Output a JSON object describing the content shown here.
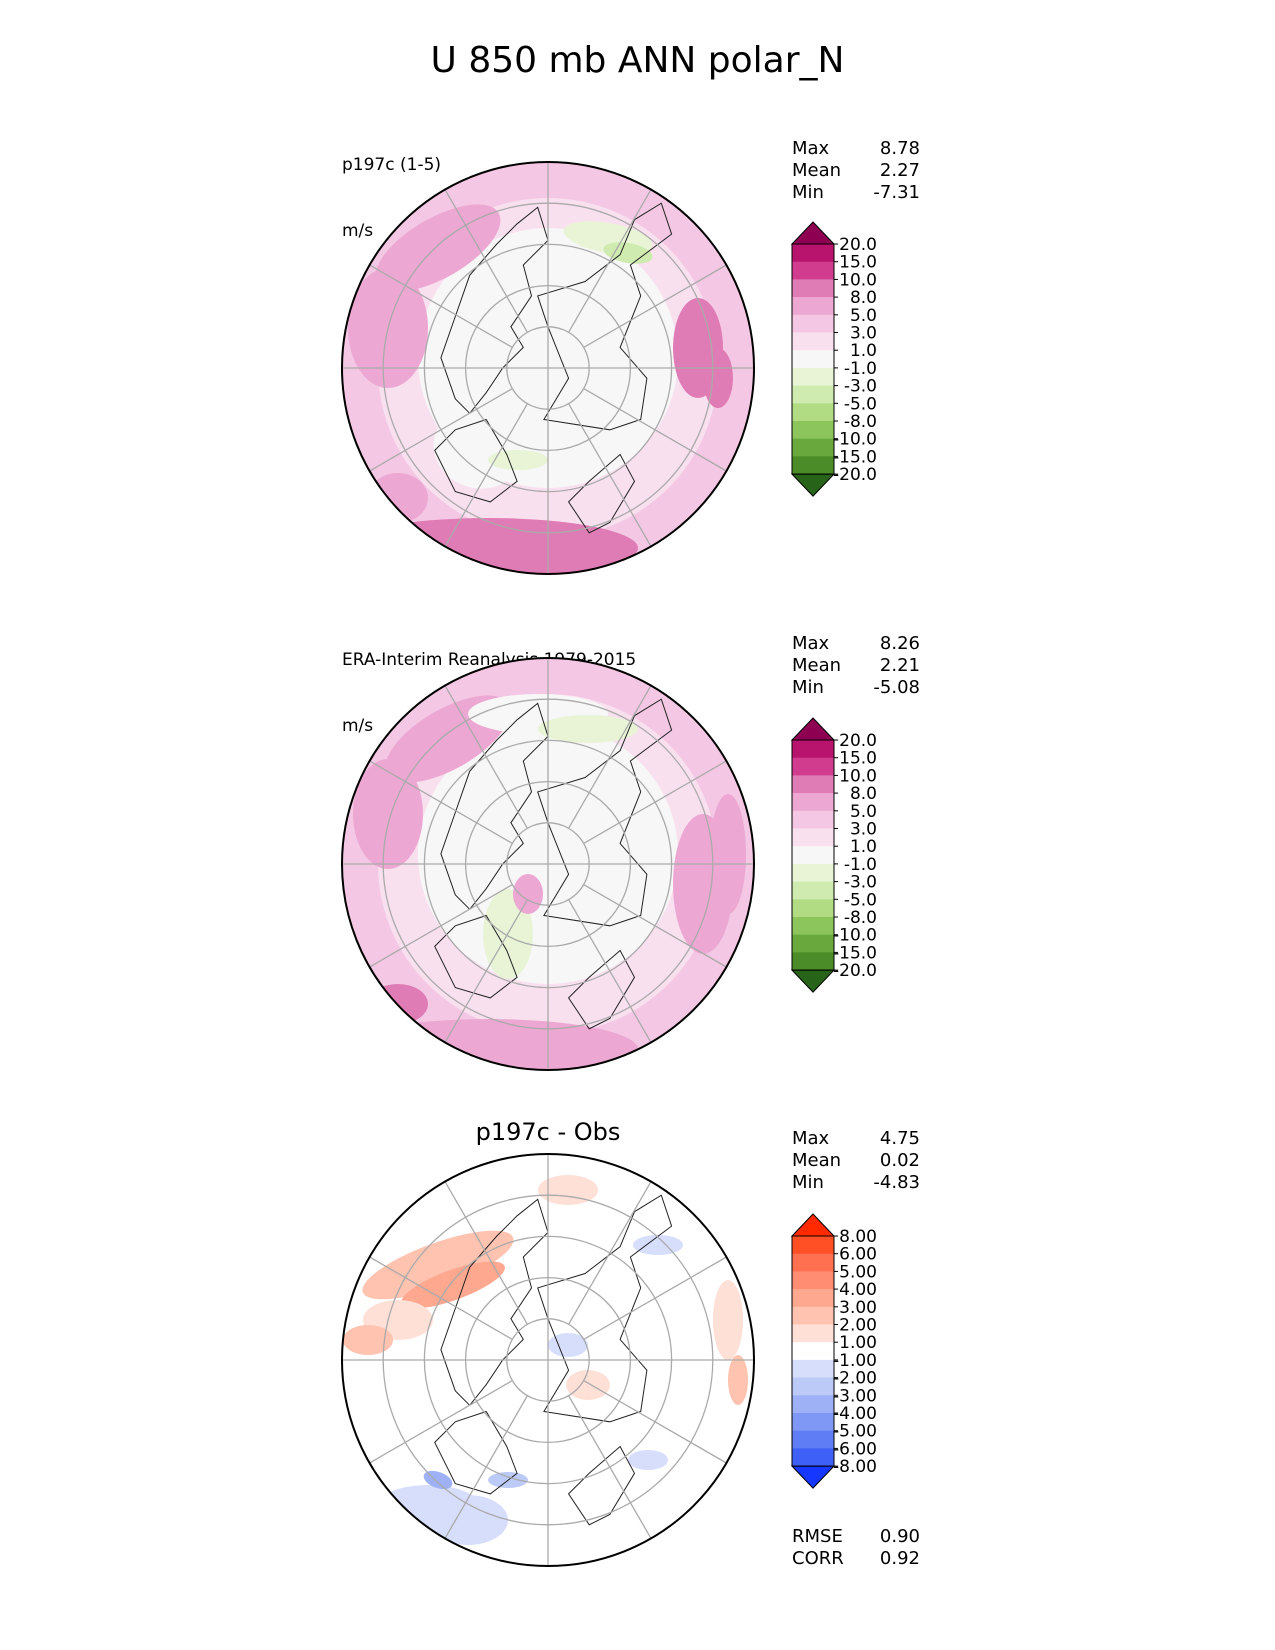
{
  "title": "U 850 mb ANN polar_N",
  "panels": [
    {
      "name": "test",
      "title_lines": [
        "p197c (1-5)",
        "m/s"
      ],
      "center_title": "",
      "stats": [
        {
          "label": "Max",
          "value": "8.78"
        },
        {
          "label": "Mean",
          "value": "2.27"
        },
        {
          "label": "Min",
          "value": "-7.31"
        }
      ],
      "footer_stats": []
    },
    {
      "name": "reference",
      "title_lines": [
        "ERA-Interim Reanalysis 1979-2015",
        "m/s"
      ],
      "center_title": "",
      "stats": [
        {
          "label": "Max",
          "value": "8.26"
        },
        {
          "label": "Mean",
          "value": "2.21"
        },
        {
          "label": "Min",
          "value": "-5.08"
        }
      ],
      "footer_stats": []
    },
    {
      "name": "difference",
      "title_lines": [],
      "center_title": "p197c - Obs",
      "stats": [
        {
          "label": "Max",
          "value": "4.75"
        },
        {
          "label": "Mean",
          "value": "0.02"
        },
        {
          "label": "Min",
          "value": "-4.83"
        }
      ],
      "footer_stats": [
        {
          "label": "RMSE",
          "value": "0.90"
        },
        {
          "label": "CORR",
          "value": "0.92"
        }
      ]
    }
  ],
  "chart_data": [
    {
      "type": "heatmap",
      "projection": "north polar stereographic",
      "grid": true,
      "colorbar_levels": [
        "20.0",
        "15.0",
        "10.0",
        "8.0",
        "5.0",
        "3.0",
        "1.0",
        "-1.0",
        "-3.0",
        "-5.0",
        "-8.0",
        "-10.0",
        "-15.0",
        "-20.0"
      ],
      "colorbar_colors": [
        "#8e0152",
        "#b8146d",
        "#d13c8f",
        "#e07cb5",
        "#eca8d3",
        "#f4c8e4",
        "#f9e0ef",
        "#f7f7f7",
        "#e8f4d5",
        "#d0ebb0",
        "#b1dc84",
        "#8cc55b",
        "#69a83c",
        "#4b8c28",
        "#276419"
      ],
      "stats": {
        "max": 8.78,
        "mean": 2.27,
        "min": -7.31
      }
    },
    {
      "type": "heatmap",
      "projection": "north polar stereographic",
      "grid": true,
      "colorbar_levels": [
        "20.0",
        "15.0",
        "10.0",
        "8.0",
        "5.0",
        "3.0",
        "1.0",
        "-1.0",
        "-3.0",
        "-5.0",
        "-8.0",
        "-10.0",
        "-15.0",
        "-20.0"
      ],
      "colorbar_colors": [
        "#8e0152",
        "#b8146d",
        "#d13c8f",
        "#e07cb5",
        "#eca8d3",
        "#f4c8e4",
        "#f9e0ef",
        "#f7f7f7",
        "#e8f4d5",
        "#d0ebb0",
        "#b1dc84",
        "#8cc55b",
        "#69a83c",
        "#4b8c28",
        "#276419"
      ],
      "stats": {
        "max": 8.26,
        "mean": 2.21,
        "min": -5.08
      }
    },
    {
      "type": "heatmap",
      "projection": "north polar stereographic",
      "grid": true,
      "colorbar_levels": [
        "8.00",
        "6.00",
        "5.00",
        "4.00",
        "3.00",
        "2.00",
        "1.00",
        "-1.00",
        "-2.00",
        "-3.00",
        "-4.00",
        "-5.00",
        "-6.00",
        "-8.00"
      ],
      "colorbar_colors": [
        "#ff2a00",
        "#ff4f25",
        "#ff7050",
        "#ff8d72",
        "#ffa890",
        "#ffc3b0",
        "#ffe0d6",
        "#ffffff",
        "#d6defc",
        "#bccaf8",
        "#9eb1f6",
        "#7f97f5",
        "#5f7df5",
        "#3f60f7",
        "#1537ff"
      ],
      "stats": {
        "max": 4.75,
        "mean": 0.02,
        "min": -4.83,
        "rmse": 0.9,
        "corr": 0.92
      }
    }
  ]
}
